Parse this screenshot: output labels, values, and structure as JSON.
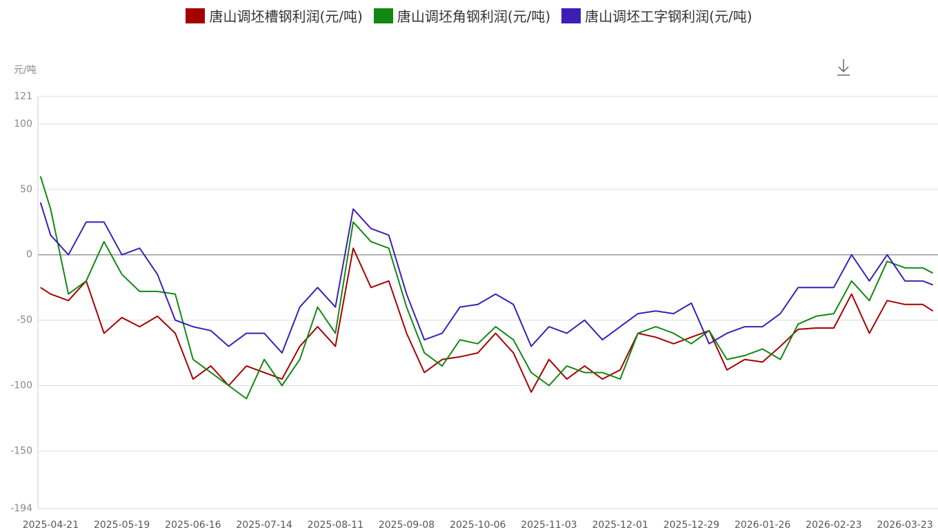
{
  "chart_data": {
    "type": "line",
    "y_label": "元/吨",
    "x": [
      "2025-04-17",
      "2025-04-21",
      "2025-04-28",
      "2025-05-05",
      "2025-05-12",
      "2025-05-19",
      "2025-05-26",
      "2025-06-02",
      "2025-06-09",
      "2025-06-16",
      "2025-06-23",
      "2025-06-30",
      "2025-07-07",
      "2025-07-14",
      "2025-07-21",
      "2025-07-28",
      "2025-08-04",
      "2025-08-11",
      "2025-08-18",
      "2025-08-25",
      "2025-09-01",
      "2025-09-08",
      "2025-09-15",
      "2025-09-22",
      "2025-09-29",
      "2025-10-06",
      "2025-10-13",
      "2025-10-20",
      "2025-10-27",
      "2025-11-03",
      "2025-11-10",
      "2025-11-17",
      "2025-11-24",
      "2025-12-01",
      "2025-12-08",
      "2025-12-15",
      "2025-12-22",
      "2025-12-29",
      "2026-01-05",
      "2026-01-12",
      "2026-01-19",
      "2026-01-26",
      "2026-02-02",
      "2026-02-09",
      "2026-02-16",
      "2026-02-23",
      "2026-03-02",
      "2026-03-09",
      "2026-03-16",
      "2026-03-23",
      "2026-03-30",
      "2026-04-03"
    ],
    "series": [
      {
        "name": "唐山调坯槽钢利润(元/吨)",
        "color": "#a50000",
        "values": [
          -25,
          -30,
          -35,
          -20,
          -60,
          -48,
          -55,
          -47,
          -60,
          -95,
          -85,
          -100,
          -85,
          -90,
          -95,
          -70,
          -55,
          -70,
          5,
          -25,
          -20,
          -60,
          -90,
          -80,
          -78,
          -75,
          -60,
          -75,
          -105,
          -80,
          -95,
          -85,
          -95,
          -88,
          -60,
          -63,
          -68,
          -63,
          -58,
          -88,
          -80,
          -82,
          -70,
          -57,
          -56,
          -56,
          -30,
          -60,
          -35,
          -38,
          -38,
          -43
        ]
      },
      {
        "name": "唐山调坯角钢利润(元/吨)",
        "color": "#118811",
        "values": [
          60,
          35,
          -30,
          -20,
          10,
          -15,
          -28,
          -28,
          -30,
          -80,
          -90,
          -100,
          -110,
          -80,
          -100,
          -80,
          -40,
          -60,
          25,
          10,
          5,
          -40,
          -75,
          -85,
          -65,
          -68,
          -55,
          -65,
          -90,
          -100,
          -85,
          -90,
          -90,
          -95,
          -60,
          -55,
          -60,
          -68,
          -58,
          -80,
          -77,
          -72,
          -80,
          -53,
          -47,
          -45,
          -20,
          -35,
          -5,
          -10,
          -10,
          -14
        ]
      },
      {
        "name": "唐山调坯工字钢利润(元/吨)",
        "color": "#3b1fb5",
        "values": [
          40,
          15,
          0,
          25,
          25,
          0,
          5,
          -15,
          -50,
          -55,
          -58,
          -70,
          -60,
          -60,
          -75,
          -40,
          -25,
          -40,
          35,
          20,
          15,
          -30,
          -65,
          -60,
          -40,
          -38,
          -30,
          -38,
          -70,
          -55,
          -60,
          -50,
          -65,
          -55,
          -45,
          -43,
          -45,
          -37,
          -68,
          -60,
          -55,
          -55,
          -45,
          -25,
          -25,
          -25,
          0,
          -20,
          0,
          -20,
          -20,
          -23
        ]
      }
    ],
    "xlim": [
      "2025-04-16",
      "2026-04-05"
    ],
    "xticks": [
      "2025-04-21",
      "2025-05-19",
      "2025-06-16",
      "2025-07-14",
      "2025-08-11",
      "2025-09-08",
      "2025-10-06",
      "2025-11-03",
      "2025-12-01",
      "2025-12-29",
      "2026-01-26",
      "2026-02-23",
      "2026-03-23"
    ],
    "ylim": [
      -194,
      121
    ],
    "yticks": [
      -194,
      -150,
      -100,
      -50,
      0,
      50,
      100,
      121
    ],
    "grid": true
  }
}
